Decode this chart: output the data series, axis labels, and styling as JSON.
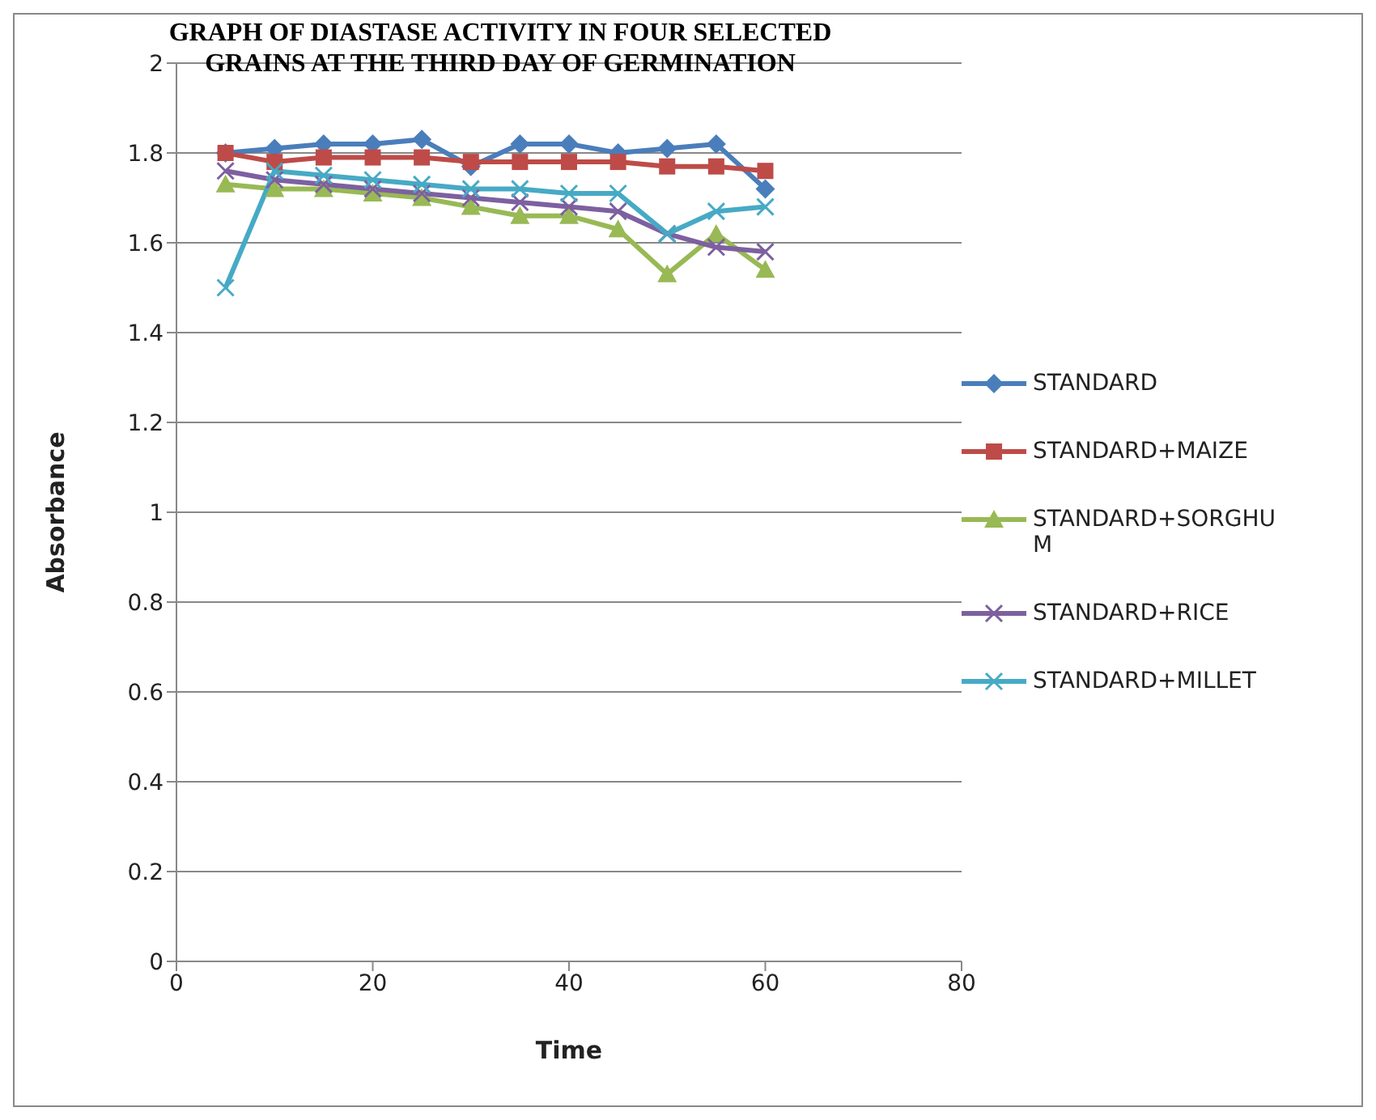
{
  "chart_data": {
    "type": "line",
    "title": "GRAPH OF DIASTASE ACTIVITY IN FOUR SELECTED GRAINS AT THE THIRD DAY OF GERMINATION",
    "xlabel": "Time",
    "ylabel": "Absorbance",
    "x": [
      5,
      10,
      15,
      20,
      25,
      30,
      35,
      40,
      45,
      50,
      55,
      60
    ],
    "series": [
      {
        "name": "STANDARD",
        "color": "#4a7ebb",
        "marker": "diamond",
        "values": [
          1.8,
          1.81,
          1.82,
          1.82,
          1.83,
          1.77,
          1.82,
          1.82,
          1.8,
          1.81,
          1.82,
          1.72
        ]
      },
      {
        "name": "STANDARD+MAIZE",
        "color": "#be4b48",
        "marker": "square",
        "values": [
          1.8,
          1.78,
          1.79,
          1.79,
          1.79,
          1.78,
          1.78,
          1.78,
          1.78,
          1.77,
          1.77,
          1.76
        ]
      },
      {
        "name": "STANDARD+SORGHUM",
        "color": "#98b954",
        "marker": "triangle",
        "values": [
          1.73,
          1.72,
          1.72,
          1.71,
          1.7,
          1.68,
          1.66,
          1.66,
          1.63,
          1.53,
          1.62,
          1.54
        ]
      },
      {
        "name": "STANDARD+RICE",
        "color": "#7d60a0",
        "marker": "cross",
        "values": [
          1.76,
          1.74,
          1.73,
          1.72,
          1.71,
          1.7,
          1.69,
          1.68,
          1.67,
          1.62,
          1.59,
          1.58
        ]
      },
      {
        "name": "STANDARD+MILLET",
        "color": "#46aac5",
        "marker": "cross",
        "values": [
          1.5,
          1.76,
          1.75,
          1.74,
          1.73,
          1.72,
          1.72,
          1.71,
          1.71,
          1.62,
          1.67,
          1.68
        ]
      }
    ],
    "xlim": [
      0,
      80
    ],
    "xticks": [
      0,
      20,
      40,
      60,
      80
    ],
    "ylim": [
      0,
      2
    ],
    "yticks": [
      0,
      0.2,
      0.4,
      0.6,
      0.8,
      1,
      1.2,
      1.4,
      1.6,
      1.8,
      2
    ],
    "grid": "y",
    "legend": "right",
    "line_style": "solid"
  }
}
